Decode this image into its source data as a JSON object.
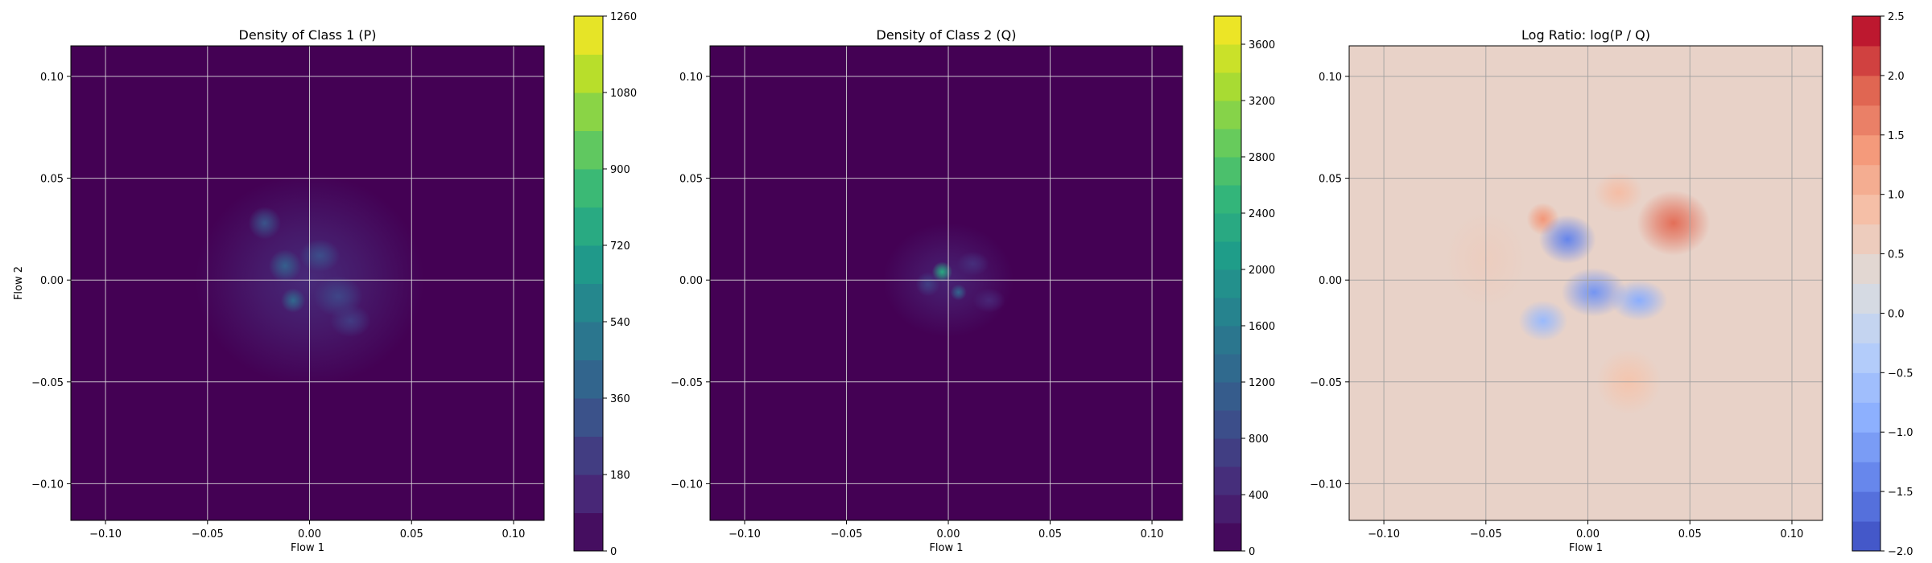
{
  "chart_data": [
    {
      "type": "heatmap",
      "title": "Density of Class 1 (P)",
      "xlabel": "Flow 1",
      "ylabel": "Flow 2",
      "xlim": [
        -0.117,
        0.115
      ],
      "ylim": [
        -0.118,
        0.115
      ],
      "xticks": [
        -0.1,
        -0.05,
        0.0,
        0.05,
        0.1
      ],
      "xtick_labels": [
        "−0.10",
        "−0.05",
        "0.00",
        "0.05",
        "0.10"
      ],
      "yticks": [
        0.1,
        0.05,
        0.0,
        -0.05,
        -0.1
      ],
      "ytick_labels": [
        "0.10",
        "0.05",
        "0.00",
        "−0.05",
        "−0.10"
      ],
      "grid": true,
      "colormap": "viridis",
      "colorbar": {
        "min": 0,
        "max": 1260,
        "tick_values": [
          0,
          180,
          360,
          540,
          720,
          900,
          1080,
          1260
        ],
        "tick_labels": [
          "0",
          "180",
          "360",
          "540",
          "720",
          "900",
          "1080",
          "1260"
        ]
      },
      "hotspots": [
        {
          "x": 0.0,
          "y": 0.0,
          "sx": 0.028,
          "sy": 0.026,
          "value": 150
        },
        {
          "x": -0.022,
          "y": 0.028,
          "sx": 0.004,
          "sy": 0.004,
          "value": 320
        },
        {
          "x": -0.012,
          "y": 0.007,
          "sx": 0.004,
          "sy": 0.004,
          "value": 380
        },
        {
          "x": -0.008,
          "y": -0.01,
          "sx": 0.003,
          "sy": 0.003,
          "value": 420
        },
        {
          "x": 0.005,
          "y": 0.012,
          "sx": 0.005,
          "sy": 0.004,
          "value": 300
        },
        {
          "x": 0.014,
          "y": -0.008,
          "sx": 0.006,
          "sy": 0.005,
          "value": 260
        },
        {
          "x": 0.02,
          "y": -0.02,
          "sx": 0.005,
          "sy": 0.004,
          "value": 220
        }
      ]
    },
    {
      "type": "heatmap",
      "title": "Density of Class 2 (Q)",
      "xlabel": "Flow 1",
      "ylabel": "",
      "xlim": [
        -0.117,
        0.115
      ],
      "ylim": [
        -0.118,
        0.115
      ],
      "xticks": [
        -0.1,
        -0.05,
        0.0,
        0.05,
        0.1
      ],
      "xtick_labels": [
        "−0.10",
        "−0.05",
        "0.00",
        "0.05",
        "0.10"
      ],
      "yticks": [
        0.1,
        0.05,
        0.0,
        -0.05,
        -0.1
      ],
      "ytick_labels": [
        "0.10",
        "0.05",
        "0.00",
        "−0.05",
        "−0.10"
      ],
      "grid": true,
      "colormap": "viridis",
      "colorbar": {
        "min": 0,
        "max": 3800,
        "tick_values": [
          0,
          400,
          800,
          1200,
          1600,
          2000,
          2400,
          2800,
          3200,
          3600
        ],
        "tick_labels": [
          "0",
          "400",
          "800",
          "1200",
          "1600",
          "2000",
          "2400",
          "2800",
          "3200",
          "3600"
        ]
      },
      "hotspots": [
        {
          "x": 0.0,
          "y": 0.0,
          "sx": 0.016,
          "sy": 0.014,
          "value": 350
        },
        {
          "x": -0.003,
          "y": 0.004,
          "sx": 0.0025,
          "sy": 0.0025,
          "value": 2300
        },
        {
          "x": 0.005,
          "y": -0.006,
          "sx": 0.002,
          "sy": 0.002,
          "value": 1200
        },
        {
          "x": -0.01,
          "y": -0.002,
          "sx": 0.003,
          "sy": 0.003,
          "value": 700
        },
        {
          "x": 0.012,
          "y": 0.008,
          "sx": 0.004,
          "sy": 0.003,
          "value": 500
        },
        {
          "x": 0.02,
          "y": -0.01,
          "sx": 0.004,
          "sy": 0.003,
          "value": 400
        }
      ]
    },
    {
      "type": "heatmap",
      "title": "Log Ratio: log(P / Q)",
      "xlabel": "Flow 1",
      "ylabel": "",
      "xlim": [
        -0.117,
        0.115
      ],
      "ylim": [
        -0.118,
        0.115
      ],
      "xticks": [
        -0.1,
        -0.05,
        0.0,
        0.05,
        0.1
      ],
      "xtick_labels": [
        "−0.10",
        "−0.05",
        "0.00",
        "0.05",
        "0.10"
      ],
      "yticks": [
        0.1,
        0.05,
        0.0,
        -0.05,
        -0.1
      ],
      "ytick_labels": [
        "0.10",
        "0.05",
        "0.00",
        "−0.05",
        "−0.10"
      ],
      "grid": true,
      "colormap": "coolwarm",
      "colorbar": {
        "min": -2.0,
        "max": 2.5,
        "tick_values": [
          -2.0,
          -1.5,
          -1.0,
          -0.5,
          0.0,
          0.5,
          1.0,
          1.5,
          2.0,
          2.5
        ],
        "tick_labels": [
          "−2.0",
          "−1.5",
          "−1.0",
          "−0.5",
          "0.0",
          "0.5",
          "1.0",
          "1.5",
          "2.0",
          "2.5"
        ]
      },
      "background_value": 0.5,
      "hotspots": [
        {
          "x": 0.042,
          "y": 0.028,
          "sx": 0.009,
          "sy": 0.008,
          "value": 1.8
        },
        {
          "x": -0.022,
          "y": 0.03,
          "sx": 0.004,
          "sy": 0.004,
          "value": 1.4
        },
        {
          "x": 0.015,
          "y": 0.043,
          "sx": 0.006,
          "sy": 0.005,
          "value": 0.9
        },
        {
          "x": 0.02,
          "y": -0.05,
          "sx": 0.008,
          "sy": 0.008,
          "value": 0.8
        },
        {
          "x": -0.05,
          "y": 0.01,
          "sx": 0.01,
          "sy": 0.012,
          "value": 0.6
        },
        {
          "x": -0.05,
          "y": 0.065,
          "sx": 0.006,
          "sy": 0.01,
          "value": 0.5
        },
        {
          "x": -0.01,
          "y": 0.02,
          "sx": 0.007,
          "sy": 0.006,
          "value": -1.4
        },
        {
          "x": 0.003,
          "y": -0.006,
          "sx": 0.008,
          "sy": 0.006,
          "value": -1.2
        },
        {
          "x": 0.025,
          "y": -0.01,
          "sx": 0.007,
          "sy": 0.005,
          "value": -0.9
        },
        {
          "x": -0.022,
          "y": -0.02,
          "sx": 0.006,
          "sy": 0.005,
          "value": -0.7
        }
      ]
    }
  ]
}
